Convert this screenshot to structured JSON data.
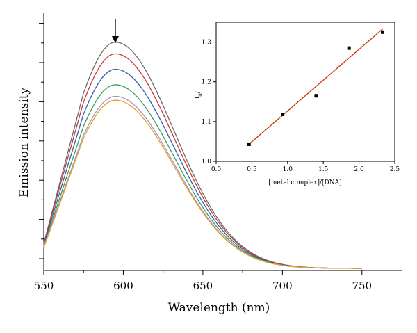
{
  "chart_data": [
    {
      "type": "line",
      "xlabel": "Wavelength (nm)",
      "ylabel": "Emission intensity",
      "xlim": [
        550,
        775
      ],
      "x_ticks": [
        550,
        600,
        650,
        700,
        750
      ],
      "y_tick_labels_shown": false,
      "annotation": "arrow-down at peak ~595 nm",
      "series": [
        {
          "color": "#6b6b6b",
          "peak_x": 595,
          "peak": 0.885,
          "start": 0.105
        },
        {
          "color": "#cc3333",
          "peak_x": 595,
          "peak": 0.84,
          "start": 0.105
        },
        {
          "color": "#2e5fa8",
          "peak_x": 595,
          "peak": 0.78,
          "start": 0.1
        },
        {
          "color": "#3a9a5a",
          "peak_x": 595,
          "peak": 0.72,
          "start": 0.095
        },
        {
          "color": "#a98fd0",
          "peak_x": 595,
          "peak": 0.675,
          "start": 0.092
        },
        {
          "color": "#e6a01a",
          "peak_x": 595,
          "peak": 0.66,
          "start": 0.088
        }
      ],
      "tail_level": 0.008
    },
    {
      "type": "scatter",
      "xlabel": "[metal complex]/[DNA]",
      "ylabel": "I0/I",
      "xlim": [
        0.0,
        2.5
      ],
      "ylim": [
        1.0,
        1.35
      ],
      "x_ticks": [
        "0.0",
        "0.5",
        "1.0",
        "1.5",
        "2.0",
        "2.5"
      ],
      "y_ticks": [
        "1.0",
        "1.1",
        "1.2",
        "1.3"
      ],
      "points": [
        {
          "x": 0.46,
          "y": 1.043
        },
        {
          "x": 0.93,
          "y": 1.118
        },
        {
          "x": 1.4,
          "y": 1.165
        },
        {
          "x": 1.86,
          "y": 1.285
        },
        {
          "x": 2.33,
          "y": 1.325
        }
      ],
      "fit_line": {
        "x": [
          0.46,
          2.33
        ],
        "y": [
          1.043,
          1.333
        ],
        "color": "#cc3300"
      }
    }
  ]
}
